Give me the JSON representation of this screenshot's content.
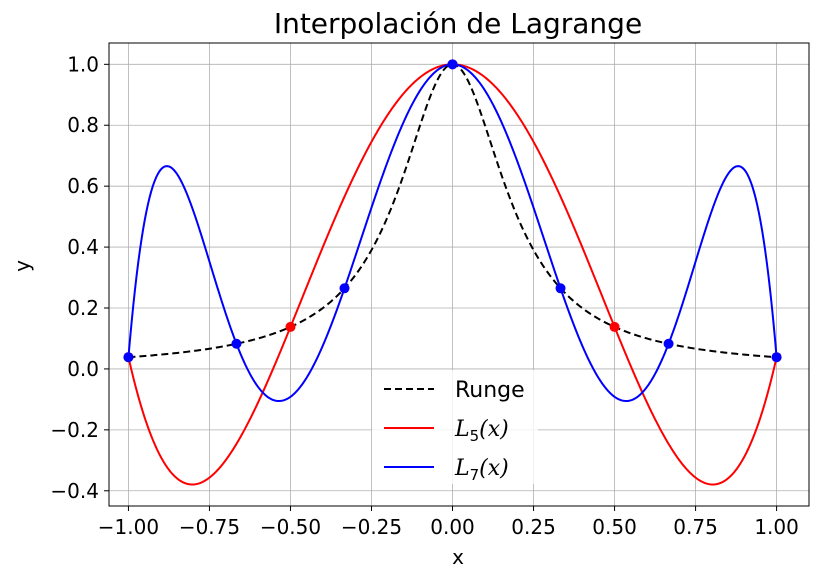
{
  "chart_data": {
    "type": "line",
    "title": "Interpolación de Lagrange",
    "xlabel": "x",
    "ylabel": "y",
    "xlim": [
      -1.06,
      1.1
    ],
    "ylim": [
      -0.45,
      1.07
    ],
    "xticks": [
      -1.0,
      -0.75,
      -0.5,
      -0.25,
      0.0,
      0.25,
      0.5,
      0.75,
      1.0
    ],
    "xtick_labels": [
      "−1.00",
      "−0.75",
      "−0.50",
      "−0.25",
      "0.00",
      "0.25",
      "0.50",
      "0.75",
      "1.00"
    ],
    "yticks": [
      -0.4,
      -0.2,
      0.0,
      0.2,
      0.4,
      0.6,
      0.8,
      1.0
    ],
    "ytick_labels": [
      "−0.4",
      "−0.2",
      "0.0",
      "0.2",
      "0.4",
      "0.6",
      "0.8",
      "1.0"
    ],
    "grid": true,
    "legend_position": "bottom-center",
    "series": [
      {
        "name": "Runge",
        "color": "#000000",
        "style": "dashed",
        "function": "runge"
      },
      {
        "name_main": "L",
        "name_sub": "5",
        "name_arg": "(x)",
        "color": "#ff0000",
        "style": "solid",
        "function": "lagrange",
        "degree": 5,
        "nodes": [
          [
            -1.0,
            0.0385
          ],
          [
            -0.5,
            0.1379
          ],
          [
            0.0,
            1.0
          ],
          [
            0.5,
            0.1379
          ],
          [
            1.0,
            0.0385
          ]
        ]
      },
      {
        "name_main": "L",
        "name_sub": "7",
        "name_arg": "(x)",
        "color": "#0000ff",
        "style": "solid",
        "function": "lagrange",
        "degree": 7,
        "nodes": [
          [
            -1.0,
            0.0385
          ],
          [
            -0.6667,
            0.0826
          ],
          [
            -0.3333,
            0.2647
          ],
          [
            0.0,
            1.0
          ],
          [
            0.3333,
            0.2647
          ],
          [
            0.6667,
            0.0826
          ],
          [
            1.0,
            0.0385
          ]
        ]
      }
    ]
  }
}
